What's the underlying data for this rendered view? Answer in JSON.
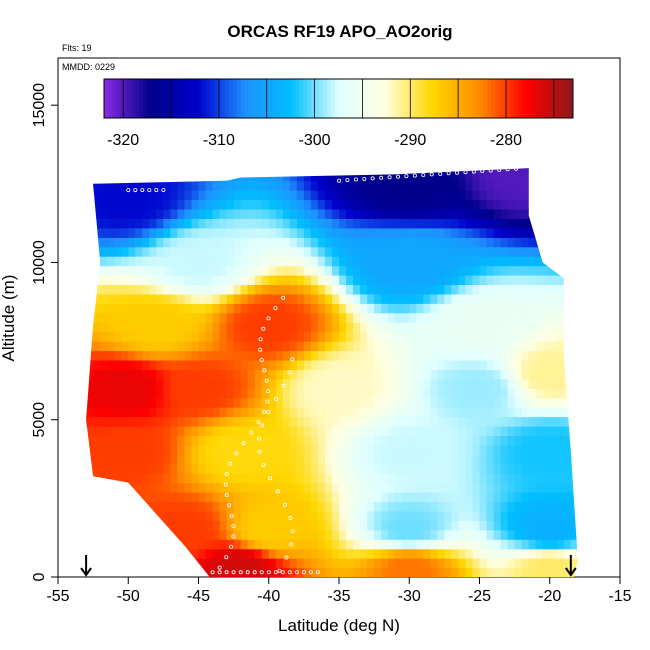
{
  "chart_data": {
    "type": "heatmap",
    "title": "ORCAS RF19 APO_AO2orig",
    "annotations": [
      "Flts: 19",
      "MMDD: 0229"
    ],
    "xlabel": "Latitude (deg N)",
    "ylabel": "Altitude (m)",
    "xlim": [
      -55,
      -15
    ],
    "ylim": [
      0,
      16500
    ],
    "x_ticks": [
      -55,
      -50,
      -45,
      -40,
      -35,
      -30,
      -25,
      -20,
      -15
    ],
    "x_tick_labels": [
      "-55",
      "-50",
      "-45",
      "-40",
      "-35",
      "-30",
      "-25",
      "-20",
      "-15"
    ],
    "y_ticks": [
      0,
      5000,
      10000,
      15000
    ],
    "y_tick_labels": [
      "0",
      "5000",
      "10000",
      "15000"
    ],
    "colorbar": {
      "range": [
        -322,
        -273
      ],
      "ticks": [
        -320,
        -310,
        -300,
        -290,
        -280
      ],
      "tick_labels": [
        "-320",
        "-310",
        "-300",
        "-290",
        "-280"
      ],
      "colors": [
        "#8a2be2",
        "#00008b",
        "#0000cd",
        "#1e90ff",
        "#00bfff",
        "#e0ffff",
        "#ffffe0",
        "#ffd700",
        "#ff8c00",
        "#ff0000",
        "#8b1a1a"
      ]
    },
    "markers": [
      {
        "type": "arrow",
        "x": -53
      },
      {
        "type": "arrow",
        "x": -18.5
      }
    ],
    "domain_outline": [
      [
        -52.5,
        12500
      ],
      [
        -43,
        12600
      ],
      [
        -42,
        12700
      ],
      [
        -31,
        12800
      ],
      [
        -21.5,
        13000
      ],
      [
        -21.5,
        11500
      ],
      [
        -20.5,
        10000
      ],
      [
        -19,
        9500
      ],
      [
        -19,
        7000
      ],
      [
        -18.5,
        4000
      ],
      [
        -18,
        500
      ],
      [
        -18.3,
        0
      ],
      [
        -44.2,
        0
      ],
      [
        -46,
        1000
      ],
      [
        -48,
        2000
      ],
      [
        -50,
        3000
      ],
      [
        -52.5,
        3200
      ],
      [
        -53,
        5000
      ],
      [
        -52.5,
        8000
      ],
      [
        -52,
        10000
      ]
    ],
    "field_description_points": [
      {
        "lat": -50,
        "alt": 12000,
        "value": -312
      },
      {
        "lat": -30,
        "alt": 12500,
        "value": -317
      },
      {
        "lat": -22,
        "alt": 12800,
        "value": -320
      },
      {
        "lat": -45,
        "alt": 10000,
        "value": -298
      },
      {
        "lat": -30,
        "alt": 10000,
        "value": -305
      },
      {
        "lat": -48,
        "alt": 8000,
        "value": -287
      },
      {
        "lat": -40,
        "alt": 8000,
        "value": -280
      },
      {
        "lat": -25,
        "alt": 8000,
        "value": -296
      },
      {
        "lat": -50,
        "alt": 6000,
        "value": -277
      },
      {
        "lat": -45,
        "alt": 6000,
        "value": -280
      },
      {
        "lat": -35,
        "alt": 6000,
        "value": -292
      },
      {
        "lat": -25,
        "alt": 6000,
        "value": -299
      },
      {
        "lat": -20,
        "alt": 6500,
        "value": -291
      },
      {
        "lat": -50,
        "alt": 4000,
        "value": -280
      },
      {
        "lat": -42,
        "alt": 4000,
        "value": -288
      },
      {
        "lat": -30,
        "alt": 4000,
        "value": -298
      },
      {
        "lat": -20,
        "alt": 4000,
        "value": -302
      },
      {
        "lat": -46,
        "alt": 1500,
        "value": -280
      },
      {
        "lat": -40,
        "alt": 1500,
        "value": -287
      },
      {
        "lat": -30,
        "alt": 1500,
        "value": -300
      },
      {
        "lat": -20,
        "alt": 1500,
        "value": -304
      },
      {
        "lat": -42,
        "alt": 300,
        "value": -276
      },
      {
        "lat": -30,
        "alt": 300,
        "value": -282
      },
      {
        "lat": -20,
        "alt": 300,
        "value": -290
      }
    ]
  }
}
